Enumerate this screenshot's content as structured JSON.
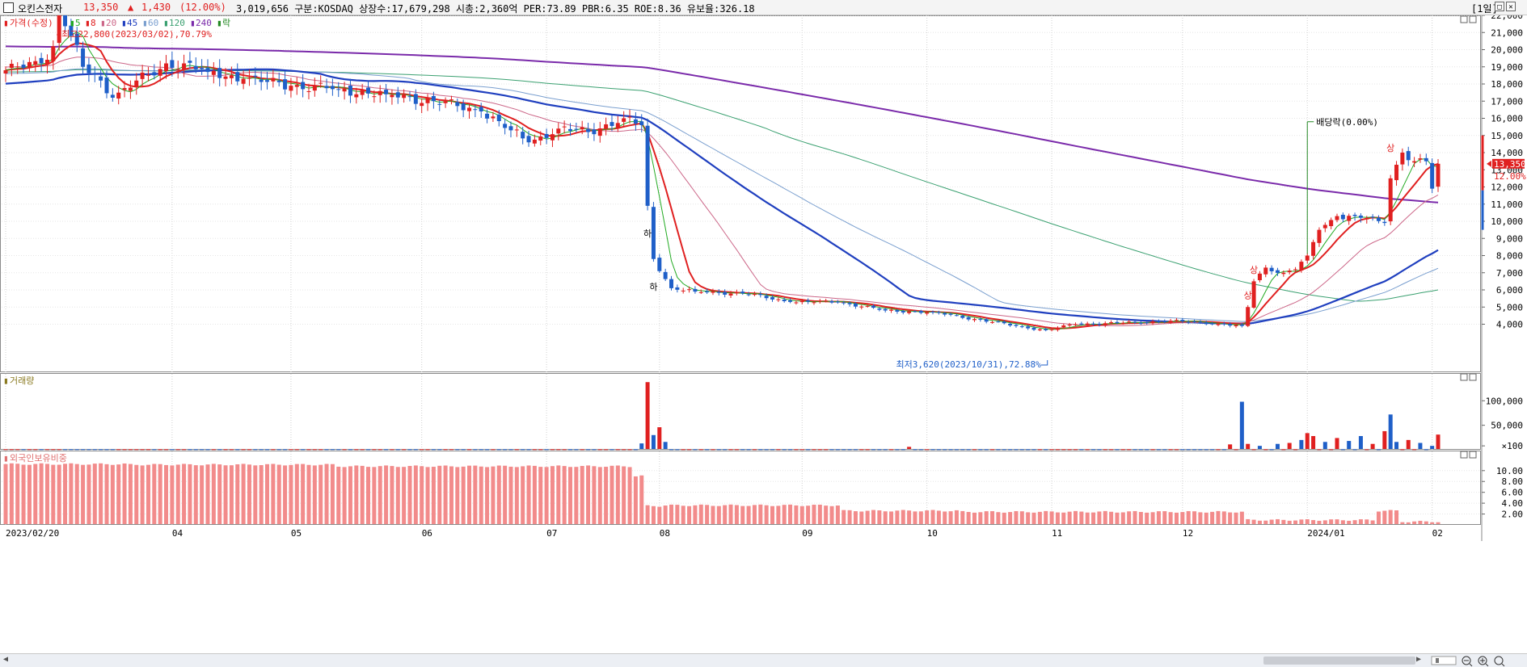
{
  "header": {
    "stock_name": "오킨스전자",
    "price": "13,350",
    "change_arrow": "▲",
    "change": "1,430",
    "change_pct": "(12.00%)",
    "info": "3,019,656  구분:KOSDAQ 상장수:17,679,298 시총:2,360억 PER:73.89 PBR:6.35 ROE:8.36 유보율:326.18",
    "period": "[1일]",
    "colors": {
      "up": "#e02020",
      "down": "#1f5fc8"
    }
  },
  "legend": {
    "price_label": "가격(수정)",
    "ma": [
      {
        "label": "5",
        "color": "#22aa22"
      },
      {
        "label": "8",
        "color": "#e02020"
      },
      {
        "label": "20",
        "color": "#cc6688"
      },
      {
        "label": "45",
        "color": "#1f3fbf"
      },
      {
        "label": "60",
        "color": "#7a9fcf"
      },
      {
        "label": "120",
        "color": "#3aa070"
      },
      {
        "label": "240",
        "color": "#7a2aaa"
      }
    ],
    "event_label": "락"
  },
  "annotations": {
    "high": "최고22,800(2023/03/02),70.79%",
    "low": "최저3,620(2023/10/31),72.88%",
    "dividend": "배당락(0.00%)",
    "down_limit_1": "하",
    "down_limit_2": "하",
    "up_limit_1": "상",
    "up_limit_2": "상",
    "up_limit_3": "상",
    "current_price": "13,350",
    "current_pct": "12.00%"
  },
  "panels": {
    "volume_title": "거래량",
    "foreign_title": "외국인보유비중"
  },
  "chart_data": {
    "type": "candlestick",
    "price_axis": {
      "ticks": [
        "22,000",
        "21,000",
        "20,000",
        "19,000",
        "18,000",
        "17,000",
        "16,000",
        "15,000",
        "14,000",
        "13,000",
        "12,000",
        "11,000",
        "10,000",
        "9,000",
        "8,000",
        "7,000",
        "6,000",
        "5,000",
        "4,000"
      ],
      "range": [
        3200,
        23600
      ]
    },
    "volume_axis": {
      "ticks": [
        "100,000",
        "50,000",
        "×100"
      ],
      "range": [
        0,
        140000
      ]
    },
    "foreign_axis": {
      "ticks": [
        "10.00",
        "8.00",
        "6.00",
        "4.00",
        "2.00"
      ],
      "range": [
        0,
        12.5
      ]
    },
    "x_axis_labels": [
      "2023/02/20",
      "04",
      "05",
      "06",
      "07",
      "08",
      "09",
      "10",
      "11",
      "12",
      "2024/01",
      "02"
    ],
    "anchors": [
      {
        "i": 0,
        "c": 18800
      },
      {
        "i": 6,
        "c": 19200
      },
      {
        "i": 8,
        "c": 20200
      },
      {
        "i": 9,
        "c": 22500
      },
      {
        "i": 11,
        "c": 20800
      },
      {
        "i": 13,
        "c": 19000
      },
      {
        "i": 16,
        "c": 18200
      },
      {
        "i": 18,
        "c": 17200
      },
      {
        "i": 22,
        "c": 18200
      },
      {
        "i": 25,
        "c": 18500
      },
      {
        "i": 27,
        "c": 19200
      },
      {
        "i": 30,
        "c": 19200
      },
      {
        "i": 34,
        "c": 18700
      },
      {
        "i": 40,
        "c": 18300
      },
      {
        "i": 48,
        "c": 17900
      },
      {
        "i": 56,
        "c": 17700
      },
      {
        "i": 64,
        "c": 17400
      },
      {
        "i": 72,
        "c": 17000
      },
      {
        "i": 80,
        "c": 16400
      },
      {
        "i": 85,
        "c": 15300
      },
      {
        "i": 88,
        "c": 14600
      },
      {
        "i": 93,
        "c": 15400
      },
      {
        "i": 98,
        "c": 15200
      },
      {
        "i": 104,
        "c": 16000
      },
      {
        "i": 107,
        "c": 15600
      },
      {
        "i": 108,
        "c": 10900
      },
      {
        "i": 109,
        "c": 7800
      },
      {
        "i": 112,
        "c": 6100
      },
      {
        "i": 116,
        "c": 5900
      },
      {
        "i": 124,
        "c": 5800
      },
      {
        "i": 132,
        "c": 5300
      },
      {
        "i": 140,
        "c": 5300
      },
      {
        "i": 148,
        "c": 4800
      },
      {
        "i": 156,
        "c": 4700
      },
      {
        "i": 163,
        "c": 4300
      },
      {
        "i": 170,
        "c": 3900
      },
      {
        "i": 175,
        "c": 3650
      },
      {
        "i": 180,
        "c": 4000
      },
      {
        "i": 190,
        "c": 4100
      },
      {
        "i": 196,
        "c": 4200
      },
      {
        "i": 205,
        "c": 4000
      },
      {
        "i": 208,
        "c": 3900
      },
      {
        "i": 209,
        "c": 5000
      },
      {
        "i": 210,
        "c": 6500
      },
      {
        "i": 212,
        "c": 7300
      },
      {
        "i": 215,
        "c": 7000
      },
      {
        "i": 217,
        "c": 7200
      },
      {
        "i": 219,
        "c": 8000
      },
      {
        "i": 221,
        "c": 9500
      },
      {
        "i": 224,
        "c": 10300
      },
      {
        "i": 228,
        "c": 10200
      },
      {
        "i": 232,
        "c": 9900
      },
      {
        "i": 233,
        "c": 12500
      },
      {
        "i": 235,
        "c": 14000
      },
      {
        "i": 237,
        "c": 13500
      },
      {
        "i": 239,
        "c": 13500
      },
      {
        "i": 240,
        "c": 11900
      },
      {
        "i": 241,
        "c": 13350
      }
    ],
    "volume_spikes": [
      {
        "i": 107,
        "v": 13000,
        "up": false
      },
      {
        "i": 108,
        "v": 138000,
        "up": true
      },
      {
        "i": 109,
        "v": 30000,
        "up": false
      },
      {
        "i": 110,
        "v": 46000,
        "up": true
      },
      {
        "i": 111,
        "v": 16000,
        "up": false
      },
      {
        "i": 152,
        "v": 6000,
        "up": true
      },
      {
        "i": 206,
        "v": 11000,
        "up": true
      },
      {
        "i": 208,
        "v": 98000,
        "up": false
      },
      {
        "i": 209,
        "v": 12000,
        "up": true
      },
      {
        "i": 211,
        "v": 8000,
        "up": false
      },
      {
        "i": 214,
        "v": 12000,
        "up": false
      },
      {
        "i": 216,
        "v": 14000,
        "up": true
      },
      {
        "i": 218,
        "v": 20000,
        "up": false
      },
      {
        "i": 219,
        "v": 34000,
        "up": true
      },
      {
        "i": 220,
        "v": 28000,
        "up": true
      },
      {
        "i": 222,
        "v": 16000,
        "up": false
      },
      {
        "i": 224,
        "v": 24000,
        "up": true
      },
      {
        "i": 226,
        "v": 18000,
        "up": false
      },
      {
        "i": 228,
        "v": 28000,
        "up": false
      },
      {
        "i": 230,
        "v": 12000,
        "up": true
      },
      {
        "i": 232,
        "v": 38000,
        "up": true
      },
      {
        "i": 233,
        "v": 72000,
        "up": false
      },
      {
        "i": 234,
        "v": 16000,
        "up": false
      },
      {
        "i": 236,
        "v": 20000,
        "up": true
      },
      {
        "i": 238,
        "v": 14000,
        "up": false
      },
      {
        "i": 240,
        "v": 8000,
        "up": false
      },
      {
        "i": 241,
        "v": 31000,
        "up": true
      }
    ],
    "foreign_ratio": {
      "segments": [
        {
          "from": 0,
          "to": 20,
          "v": 11.2
        },
        {
          "from": 21,
          "to": 55,
          "v": 11.1
        },
        {
          "from": 56,
          "to": 105,
          "v": 10.8
        },
        {
          "from": 106,
          "to": 107,
          "v": 9.0
        },
        {
          "from": 108,
          "to": 110,
          "v": 3.5
        },
        {
          "from": 111,
          "to": 140,
          "v": 3.6
        },
        {
          "from": 141,
          "to": 160,
          "v": 2.6
        },
        {
          "from": 161,
          "to": 208,
          "v": 2.4
        },
        {
          "from": 209,
          "to": 230,
          "v": 0.9
        },
        {
          "from": 231,
          "to": 234,
          "v": 2.6
        },
        {
          "from": 235,
          "to": 241,
          "v": 0.6
        }
      ]
    }
  }
}
